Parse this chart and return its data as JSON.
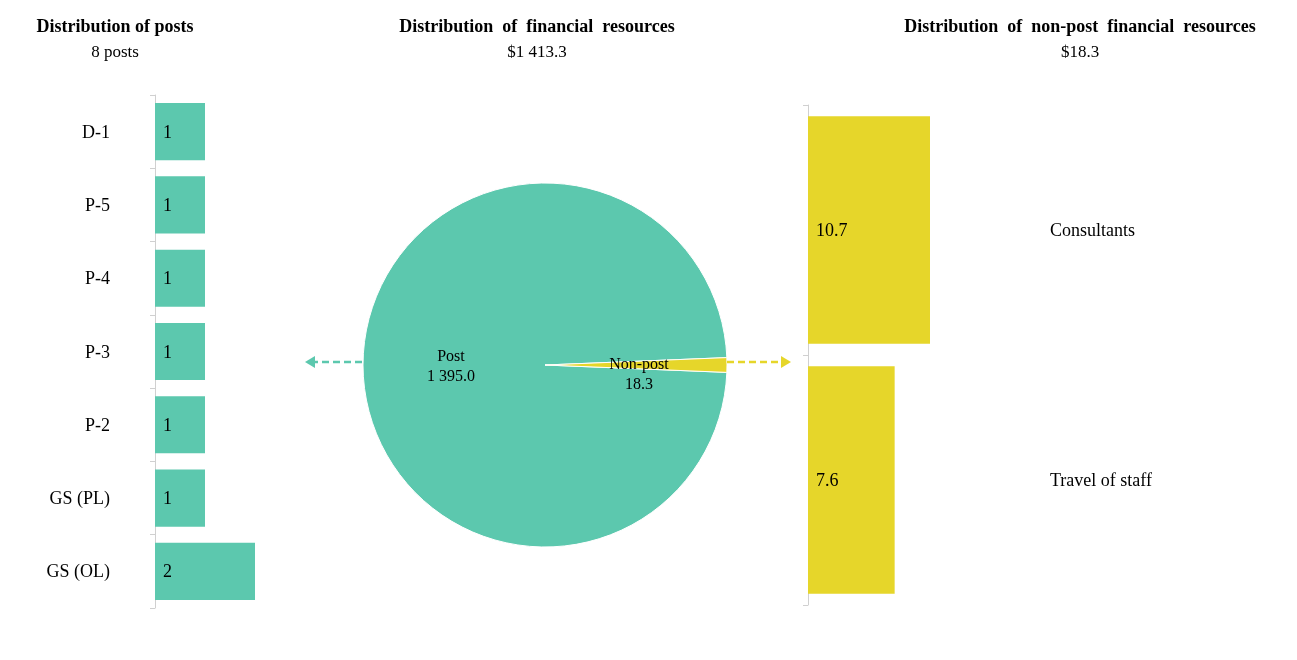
{
  "chart_data": [
    {
      "type": "bar",
      "orientation": "horizontal",
      "title": "Distribution of posts",
      "subtitle": "8 posts",
      "categories": [
        "D-1",
        "P-5",
        "P-4",
        "P-3",
        "P-2",
        "GS (PL)",
        "GS (OL)"
      ],
      "values": [
        1,
        1,
        1,
        1,
        1,
        1,
        2
      ],
      "color": "#5cc8ae",
      "data_labels": true,
      "tick_labels": "y"
    },
    {
      "type": "pie",
      "title": "Distribution  of  financial  resources",
      "subtitle": "$1 413.3",
      "categories": [
        "Post",
        "Non-post"
      ],
      "values": [
        1395.0,
        18.3
      ],
      "colors": [
        "#5cc8ae",
        "#e6d62a"
      ],
      "value_labels": [
        "1 395.0",
        "18.3"
      ]
    },
    {
      "type": "bar",
      "orientation": "horizontal",
      "title": "Distribution  of  non-post  financial  resources",
      "subtitle": "$18.3",
      "categories": [
        "Consultants",
        "Travel of staff"
      ],
      "values": [
        10.7,
        7.6
      ],
      "color": "#e6d62a",
      "data_labels": true,
      "tick_labels": "y"
    }
  ]
}
